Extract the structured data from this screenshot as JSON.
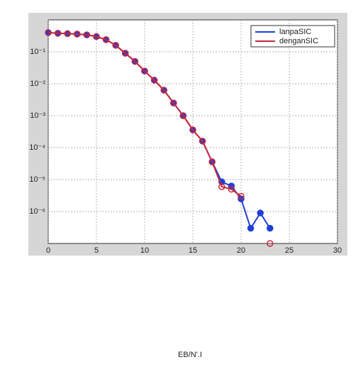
{
  "chart_data": {
    "type": "line",
    "log_y": true,
    "grid": true,
    "legend_position": "upper right",
    "x": [
      0,
      1,
      2,
      3,
      4,
      5,
      6,
      7,
      8,
      9,
      10,
      11,
      12,
      13,
      14,
      15,
      16,
      17,
      18,
      19,
      20,
      21,
      22,
      23
    ],
    "series": [
      {
        "name": "lanpaSIC",
        "color": "#1f3fd6",
        "values": [
          0.4,
          0.38,
          0.37,
          0.36,
          0.34,
          0.3,
          0.24,
          0.16,
          0.09,
          0.05,
          0.025,
          0.013,
          0.0063,
          0.0025,
          0.001,
          0.00036,
          0.00016,
          3.6e-05,
          8.5e-06,
          6.3e-06,
          2.5e-06,
          3e-07,
          9e-07,
          3e-07
        ]
      },
      {
        "name": "denganSIC",
        "color": "#c8283c",
        "values": [
          0.4,
          0.38,
          0.37,
          0.36,
          0.34,
          0.3,
          0.24,
          0.16,
          0.09,
          0.05,
          0.025,
          0.013,
          0.0063,
          0.0025,
          0.001,
          0.00036,
          0.00016,
          3.6e-05,
          6e-06,
          5e-06,
          3e-06,
          null,
          null,
          1e-07
        ]
      }
    ],
    "xlim": [
      0,
      30
    ],
    "xticks": [
      0,
      5,
      10,
      15,
      20,
      25,
      30
    ],
    "ylim": [
      1e-07,
      1
    ],
    "yticks": [
      {
        "value": 0.1,
        "label": "10⁻¹"
      },
      {
        "value": 0.01,
        "label": "10⁻²"
      },
      {
        "value": 0.001,
        "label": "10⁻³"
      },
      {
        "value": 0.0001,
        "label": "10⁻⁴"
      },
      {
        "value": 1e-05,
        "label": "10⁻⁵"
      },
      {
        "value": 1e-06,
        "label": "10⁻⁶"
      }
    ],
    "xlabel": "EB/N'.I"
  }
}
